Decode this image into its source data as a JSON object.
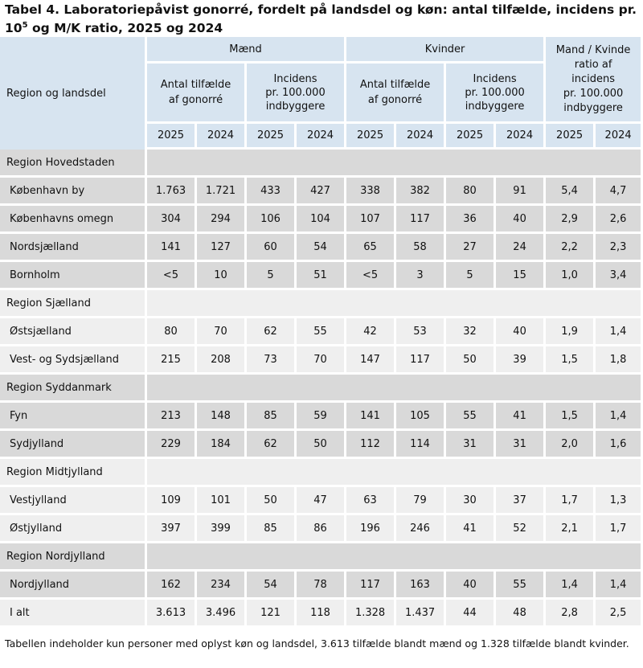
{
  "title": {
    "part1": "Tabel 4. Laboratoriepåvist gonorré, fordelt på landsdel og køn: antal tilfælde, incidens pr. 10",
    "sup": "5",
    "part2": " og M/K ratio, 2025 og 2024"
  },
  "header": {
    "region_label": "Region og landsdel",
    "men": "Mænd",
    "women": "Kvinder",
    "ratio_l1": "Mand / Kvinde",
    "ratio_l2": "ratio af",
    "ratio_l3": "incidens",
    "ratio_l4": "pr. 100.000",
    "ratio_l5": "indbyggere",
    "count_l1": "Antal tilfælde",
    "count_l2": "af gonorré",
    "inc_l1": "Incidens",
    "inc_l2": "pr. 100.000",
    "inc_l3": "indbyggere",
    "years": [
      "2025",
      "2024",
      "2025",
      "2024",
      "2025",
      "2024",
      "2025",
      "2024",
      "2025",
      "2024"
    ]
  },
  "rows": [
    {
      "type": "region",
      "name": "Region Hovedstaden",
      "shade": "g"
    },
    {
      "type": "data",
      "name": "København by",
      "shade": "g",
      "values": [
        "1.763",
        "1.721",
        "433",
        "427",
        "338",
        "382",
        "80",
        "91",
        "5,4",
        "4,7"
      ]
    },
    {
      "type": "data",
      "name": "Københavns omegn",
      "shade": "g",
      "values": [
        "304",
        "294",
        "106",
        "104",
        "107",
        "117",
        "36",
        "40",
        "2,9",
        "2,6"
      ]
    },
    {
      "type": "data",
      "name": "Nordsjælland",
      "shade": "g",
      "values": [
        "141",
        "127",
        "60",
        "54",
        "65",
        "58",
        "27",
        "24",
        "2,2",
        "2,3"
      ]
    },
    {
      "type": "data",
      "name": "Bornholm",
      "shade": "g",
      "values": [
        "<5",
        "10",
        "5",
        "51",
        "<5",
        "3",
        "5",
        "15",
        "1,0",
        "3,4"
      ]
    },
    {
      "type": "region",
      "name": "Region Sjælland",
      "shade": "l"
    },
    {
      "type": "data",
      "name": "Østsjælland",
      "shade": "l",
      "values": [
        "80",
        "70",
        "62",
        "55",
        "42",
        "53",
        "32",
        "40",
        "1,9",
        "1,4"
      ]
    },
    {
      "type": "data",
      "name": "Vest- og Sydsjælland",
      "shade": "l",
      "values": [
        "215",
        "208",
        "73",
        "70",
        "147",
        "117",
        "50",
        "39",
        "1,5",
        "1,8"
      ]
    },
    {
      "type": "region",
      "name": "Region Syddanmark",
      "shade": "g"
    },
    {
      "type": "data",
      "name": "Fyn",
      "shade": "g",
      "values": [
        "213",
        "148",
        "85",
        "59",
        "141",
        "105",
        "55",
        "41",
        "1,5",
        "1,4"
      ]
    },
    {
      "type": "data",
      "name": "Sydjylland",
      "shade": "g",
      "values": [
        "229",
        "184",
        "62",
        "50",
        "112",
        "114",
        "31",
        "31",
        "2,0",
        "1,6"
      ]
    },
    {
      "type": "region",
      "name": "Region Midtjylland",
      "shade": "l"
    },
    {
      "type": "data",
      "name": "Vestjylland",
      "shade": "l",
      "values": [
        "109",
        "101",
        "50",
        "47",
        "63",
        "79",
        "30",
        "37",
        "1,7",
        "1,3"
      ]
    },
    {
      "type": "data",
      "name": "Østjylland",
      "shade": "l",
      "values": [
        "397",
        "399",
        "85",
        "86",
        "196",
        "246",
        "41",
        "52",
        "2,1",
        "1,7"
      ]
    },
    {
      "type": "region",
      "name": "Region Nordjylland",
      "shade": "g"
    },
    {
      "type": "data",
      "name": "Nordjylland",
      "shade": "g",
      "values": [
        "162",
        "234",
        "54",
        "78",
        "117",
        "163",
        "40",
        "55",
        "1,4",
        "1,4"
      ]
    },
    {
      "type": "data",
      "name": "I alt",
      "shade": "l",
      "values": [
        "3.613",
        "3.496",
        "121",
        "118",
        "1.328",
        "1.437",
        "44",
        "48",
        "2,8",
        "2,5"
      ]
    }
  ],
  "footnote": "Tabellen indeholder kun personer med oplyst køn og landsdel, 3.613 tilfælde blandt mænd og 1.328 tilfælde blandt kvinder."
}
